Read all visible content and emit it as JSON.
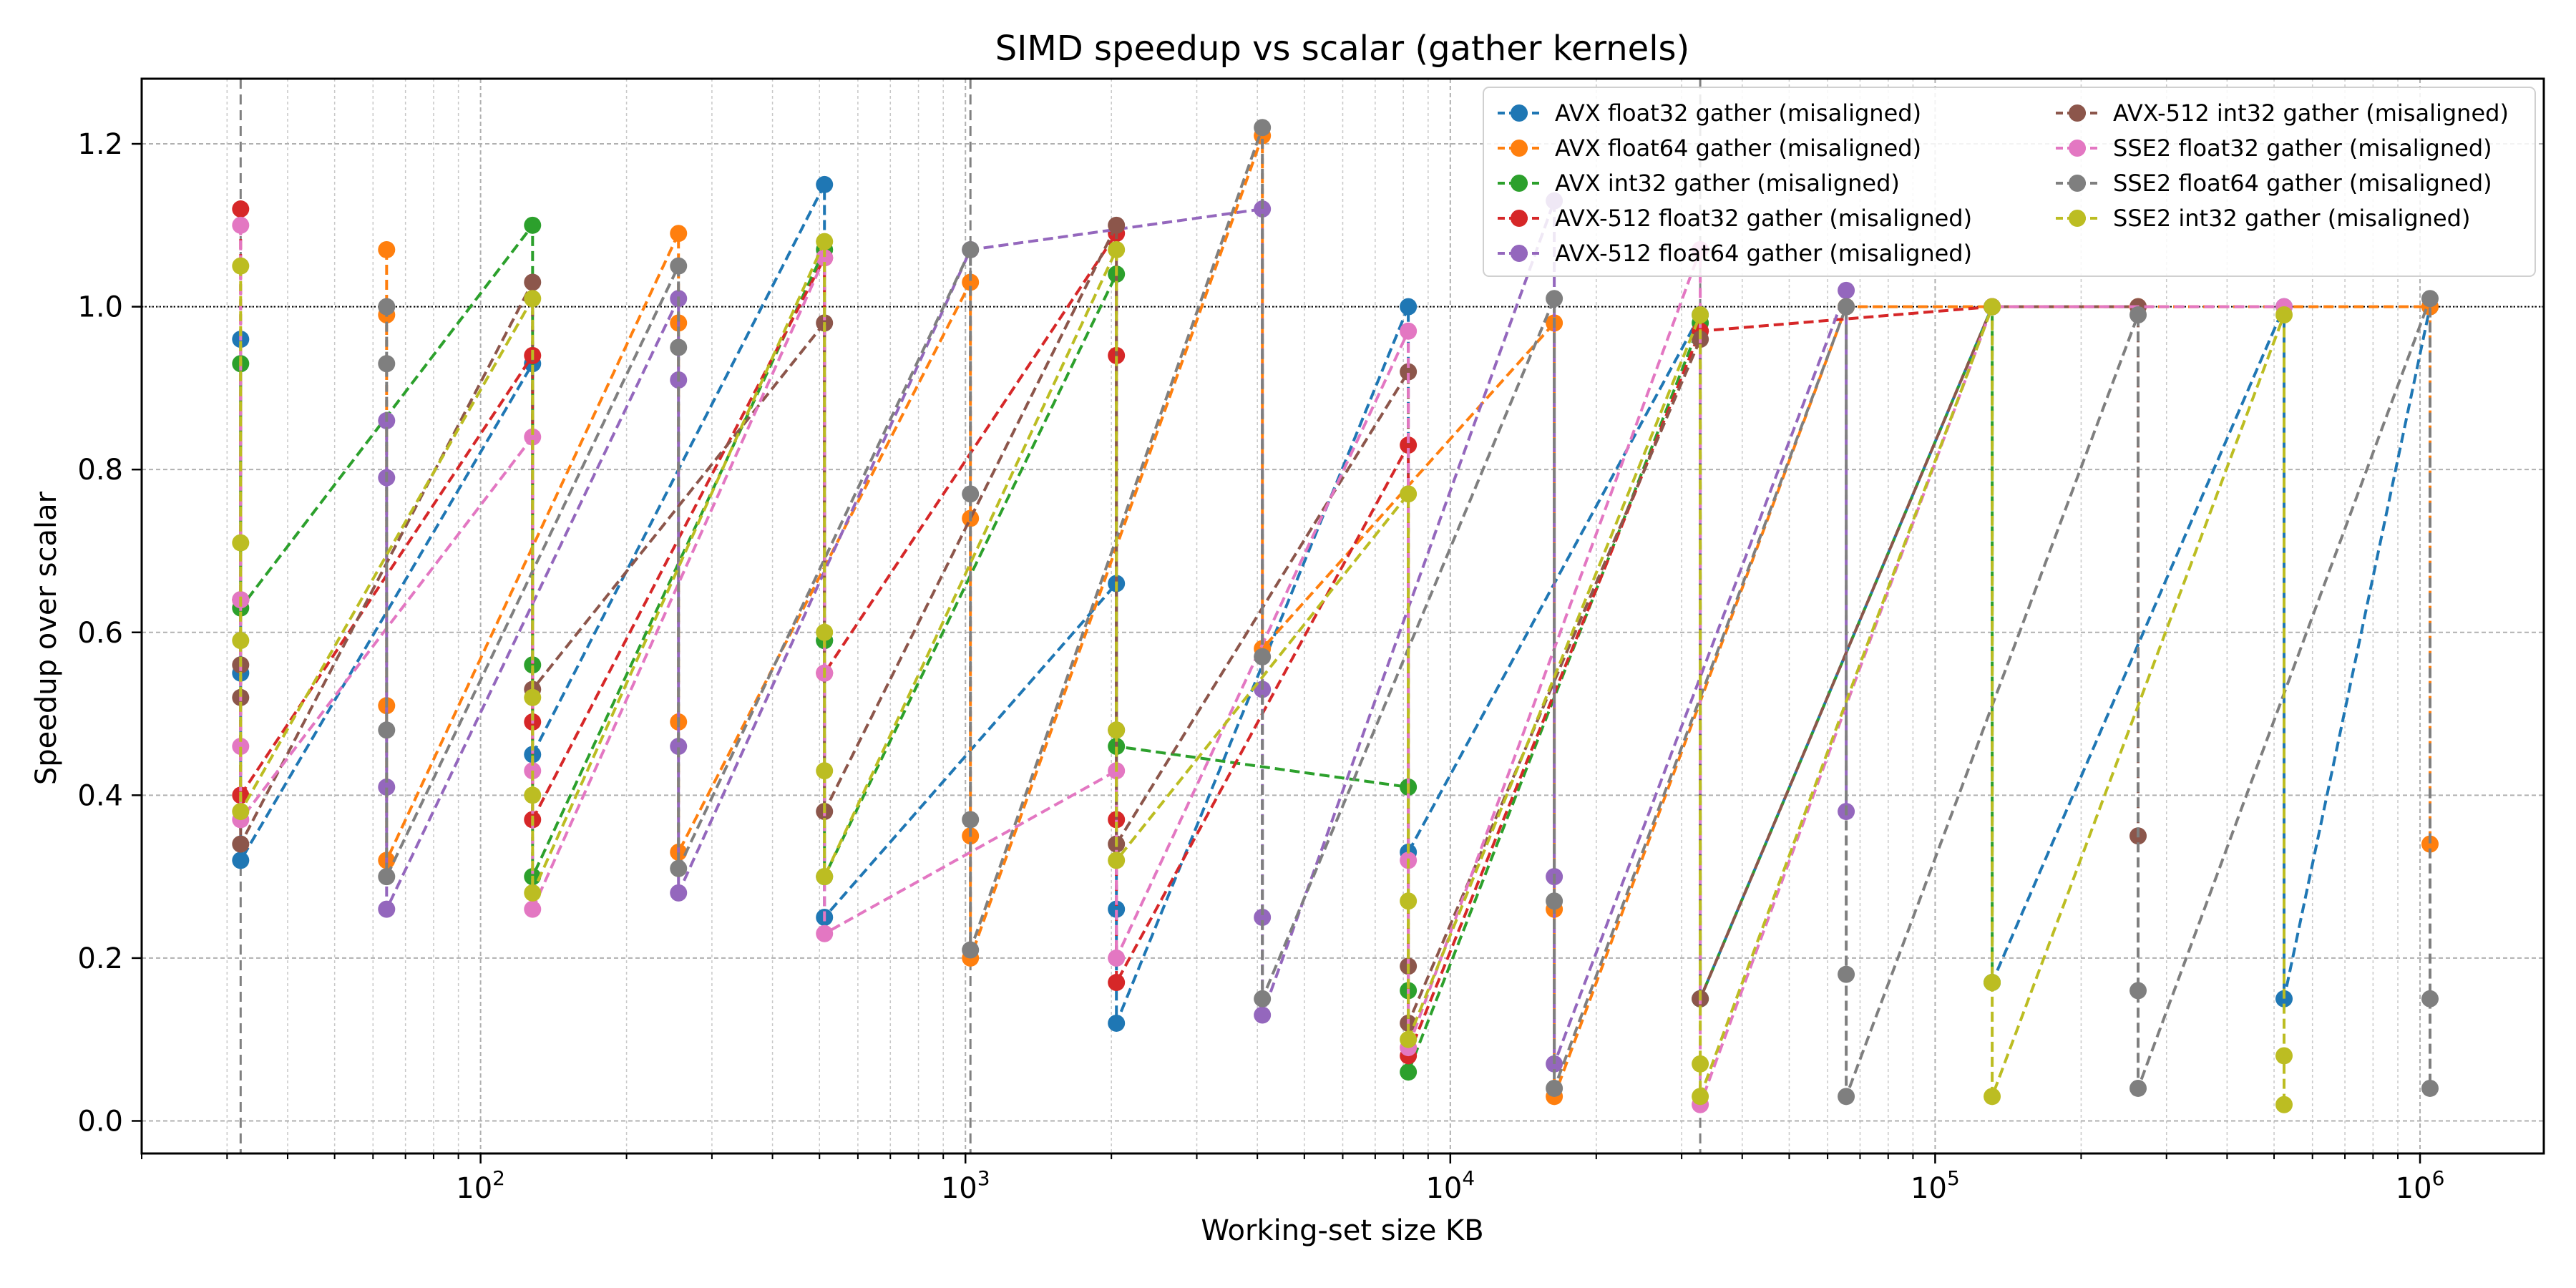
{
  "chart_data": {
    "type": "line",
    "title": "SIMD speedup vs scalar (gather kernels)",
    "xlabel": "Working-set size KB",
    "ylabel": "Speedup over scalar",
    "x_scale": "log",
    "xlim": [
      20,
      1800000
    ],
    "ylim": [
      -0.04,
      1.28
    ],
    "x_ticks": [
      100,
      1000,
      10000,
      100000,
      1000000
    ],
    "x_tick_labels": [
      {
        "base": "10",
        "exp": "2"
      },
      {
        "base": "10",
        "exp": "3"
      },
      {
        "base": "10",
        "exp": "4"
      },
      {
        "base": "10",
        "exp": "5"
      },
      {
        "base": "10",
        "exp": "6"
      }
    ],
    "y_ticks": [
      0.0,
      0.2,
      0.4,
      0.6,
      0.8,
      1.0,
      1.2
    ],
    "y_tick_labels": [
      "0.0",
      "0.2",
      "0.4",
      "0.6",
      "0.8",
      "1.0",
      "1.2"
    ],
    "grid": true,
    "reference_line_y": 1.0,
    "vertical_markers_x": [
      32,
      1024,
      32768
    ],
    "legend_position": "top-right",
    "legend_columns": 2,
    "series": [
      {
        "name": "AVX float32 gather (misaligned)",
        "color": "#1f77b4",
        "points": [
          [
            32,
            0.96
          ],
          [
            32,
            0.55
          ],
          [
            32,
            0.32
          ],
          [
            128,
            0.93
          ],
          [
            128,
            0.45
          ],
          [
            512,
            1.15
          ],
          [
            512,
            0.59
          ],
          [
            512,
            0.25
          ],
          [
            2048,
            0.66
          ],
          [
            2048,
            0.26
          ],
          [
            2048,
            0.12
          ],
          [
            8192,
            1.0
          ],
          [
            8192,
            0.33
          ],
          [
            32768,
            0.99
          ],
          [
            32768,
            0.15
          ],
          [
            131072,
            1.0
          ],
          [
            131072,
            0.17
          ],
          [
            524288,
            1.0
          ],
          [
            524288,
            0.15
          ],
          [
            1048576,
            1.0
          ]
        ]
      },
      {
        "name": "AVX float64 gather (misaligned)",
        "color": "#ff7f0e",
        "points": [
          [
            64,
            1.07
          ],
          [
            64,
            0.99
          ],
          [
            64,
            0.51
          ],
          [
            64,
            0.32
          ],
          [
            256,
            1.09
          ],
          [
            256,
            0.98
          ],
          [
            256,
            0.49
          ],
          [
            256,
            0.33
          ],
          [
            1024,
            1.03
          ],
          [
            1024,
            0.74
          ],
          [
            1024,
            0.35
          ],
          [
            1024,
            0.2
          ],
          [
            4096,
            1.21
          ],
          [
            4096,
            0.58
          ],
          [
            16384,
            0.98
          ],
          [
            16384,
            0.26
          ],
          [
            16384,
            0.03
          ],
          [
            65536,
            1.0
          ],
          [
            262144,
            1.0
          ],
          [
            1048576,
            1.0
          ],
          [
            1048576,
            0.34
          ]
        ]
      },
      {
        "name": "AVX int32 gather (misaligned)",
        "color": "#2ca02c",
        "points": [
          [
            32,
            0.93
          ],
          [
            32,
            0.63
          ],
          [
            128,
            1.1
          ],
          [
            128,
            0.56
          ],
          [
            128,
            0.3
          ],
          [
            512,
            1.07
          ],
          [
            512,
            0.59
          ],
          [
            512,
            0.3
          ],
          [
            2048,
            1.04
          ],
          [
            2048,
            0.46
          ],
          [
            8192,
            0.41
          ],
          [
            8192,
            0.16
          ],
          [
            8192,
            0.06
          ],
          [
            32768,
            0.98
          ],
          [
            32768,
            0.15
          ],
          [
            131072,
            1.0
          ],
          [
            131072,
            0.17
          ]
        ]
      },
      {
        "name": "AVX-512 float32 gather (misaligned)",
        "color": "#d62728",
        "points": [
          [
            32,
            1.12
          ],
          [
            32,
            0.64
          ],
          [
            32,
            0.4
          ],
          [
            128,
            0.94
          ],
          [
            128,
            0.49
          ],
          [
            128,
            0.37
          ],
          [
            512,
            1.06
          ],
          [
            512,
            0.55
          ],
          [
            2048,
            1.09
          ],
          [
            2048,
            0.94
          ],
          [
            2048,
            0.37
          ],
          [
            2048,
            0.17
          ],
          [
            8192,
            0.83
          ],
          [
            8192,
            0.08
          ],
          [
            32768,
            0.97
          ],
          [
            131072,
            1.0
          ]
        ]
      },
      {
        "name": "AVX-512 float64 gather (misaligned)",
        "color": "#9467bd",
        "points": [
          [
            64,
            0.86
          ],
          [
            64,
            0.79
          ],
          [
            64,
            0.41
          ],
          [
            64,
            0.26
          ],
          [
            256,
            1.01
          ],
          [
            256,
            0.91
          ],
          [
            256,
            0.46
          ],
          [
            256,
            0.28
          ],
          [
            1024,
            1.07
          ],
          [
            4096,
            1.12
          ],
          [
            4096,
            0.53
          ],
          [
            4096,
            0.25
          ],
          [
            4096,
            0.13
          ],
          [
            16384,
            1.13
          ],
          [
            16384,
            0.3
          ],
          [
            16384,
            0.07
          ],
          [
            65536,
            1.02
          ],
          [
            65536,
            0.38
          ]
        ]
      },
      {
        "name": "AVX-512 int32 gather (misaligned)",
        "color": "#8c564b",
        "points": [
          [
            32,
            0.64
          ],
          [
            32,
            0.56
          ],
          [
            32,
            0.52
          ],
          [
            32,
            0.34
          ],
          [
            128,
            1.03
          ],
          [
            128,
            0.53
          ],
          [
            512,
            0.98
          ],
          [
            512,
            0.38
          ],
          [
            2048,
            1.1
          ],
          [
            2048,
            0.48
          ],
          [
            2048,
            0.34
          ],
          [
            8192,
            0.92
          ],
          [
            8192,
            0.19
          ],
          [
            8192,
            0.12
          ],
          [
            32768,
            0.96
          ],
          [
            32768,
            0.15
          ],
          [
            131072,
            1.0
          ],
          [
            262144,
            1.0
          ],
          [
            262144,
            0.35
          ]
        ]
      },
      {
        "name": "SSE2 float32 gather (misaligned)",
        "color": "#e377c2",
        "points": [
          [
            32,
            1.1
          ],
          [
            32,
            0.64
          ],
          [
            32,
            0.46
          ],
          [
            32,
            0.37
          ],
          [
            128,
            0.84
          ],
          [
            128,
            0.43
          ],
          [
            128,
            0.26
          ],
          [
            512,
            1.06
          ],
          [
            512,
            0.55
          ],
          [
            512,
            0.23
          ],
          [
            2048,
            0.43
          ],
          [
            2048,
            0.2
          ],
          [
            8192,
            0.97
          ],
          [
            8192,
            0.32
          ],
          [
            8192,
            0.09
          ],
          [
            32768,
            1.07
          ],
          [
            32768,
            0.02
          ],
          [
            131072,
            1.0
          ],
          [
            524288,
            1.0
          ]
        ]
      },
      {
        "name": "SSE2 float64 gather (misaligned)",
        "color": "#7f7f7f",
        "points": [
          [
            64,
            1.0
          ],
          [
            64,
            0.93
          ],
          [
            64,
            0.48
          ],
          [
            64,
            0.3
          ],
          [
            256,
            1.05
          ],
          [
            256,
            0.95
          ],
          [
            256,
            0.31
          ],
          [
            1024,
            1.07
          ],
          [
            1024,
            0.77
          ],
          [
            1024,
            0.37
          ],
          [
            1024,
            0.21
          ],
          [
            4096,
            1.22
          ],
          [
            4096,
            0.57
          ],
          [
            4096,
            0.15
          ],
          [
            16384,
            1.01
          ],
          [
            16384,
            0.27
          ],
          [
            16384,
            0.04
          ],
          [
            65536,
            1.0
          ],
          [
            65536,
            0.18
          ],
          [
            65536,
            0.03
          ],
          [
            262144,
            0.99
          ],
          [
            262144,
            0.16
          ],
          [
            262144,
            0.04
          ],
          [
            1048576,
            1.01
          ],
          [
            1048576,
            0.15
          ],
          [
            1048576,
            0.04
          ]
        ]
      },
      {
        "name": "SSE2 int32 gather (misaligned)",
        "color": "#bcbd22",
        "points": [
          [
            32,
            1.05
          ],
          [
            32,
            0.71
          ],
          [
            32,
            0.59
          ],
          [
            32,
            0.38
          ],
          [
            128,
            1.01
          ],
          [
            128,
            0.52
          ],
          [
            128,
            0.4
          ],
          [
            128,
            0.28
          ],
          [
            512,
            1.08
          ],
          [
            512,
            0.6
          ],
          [
            512,
            0.43
          ],
          [
            512,
            0.3
          ],
          [
            2048,
            1.07
          ],
          [
            2048,
            0.48
          ],
          [
            2048,
            0.32
          ],
          [
            8192,
            0.77
          ],
          [
            8192,
            0.27
          ],
          [
            8192,
            0.1
          ],
          [
            32768,
            0.99
          ],
          [
            32768,
            0.07
          ],
          [
            32768,
            0.03
          ],
          [
            131072,
            1.0
          ],
          [
            131072,
            0.17
          ],
          [
            131072,
            0.03
          ],
          [
            524288,
            0.99
          ],
          [
            524288,
            0.08
          ],
          [
            524288,
            0.02
          ]
        ]
      }
    ]
  }
}
